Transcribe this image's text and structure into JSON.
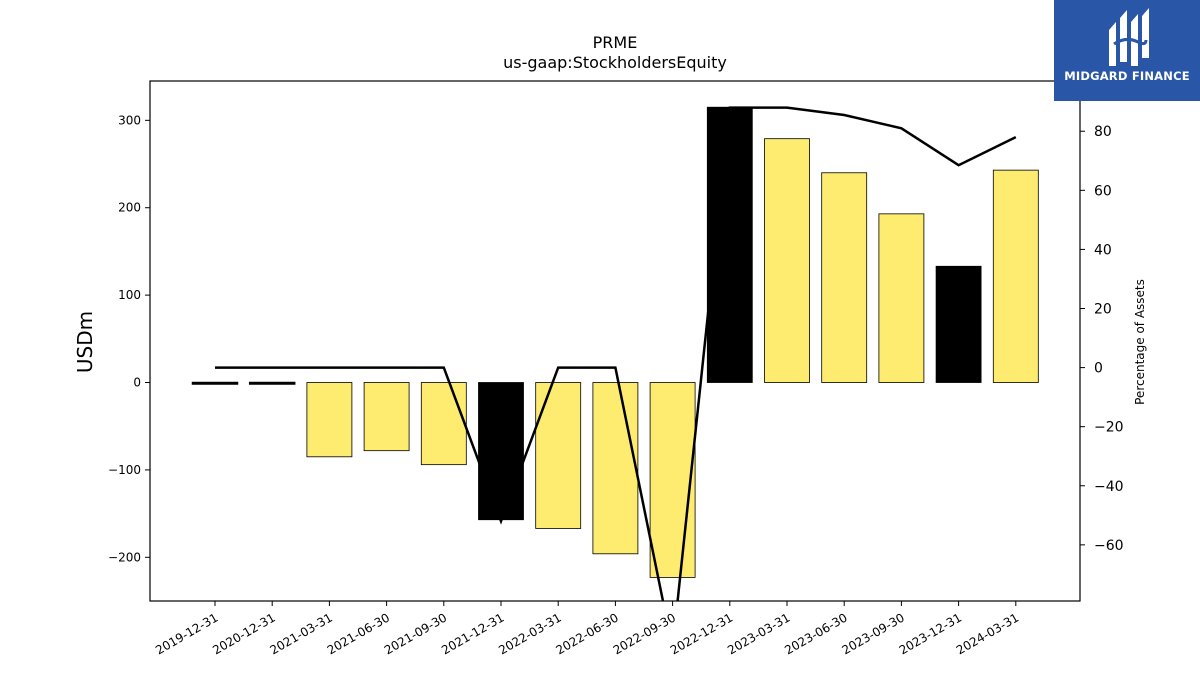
{
  "chart_data": {
    "type": "bar",
    "title": "PRME",
    "subtitle": "us-gaap:StockholdersEquity",
    "ylabel": "USDm",
    "y2label": "Percentage of Assets",
    "ylim": [
      -250,
      345
    ],
    "y2lim": [
      -79,
      97
    ],
    "yticks": [
      -200,
      -100,
      0,
      100,
      200,
      300
    ],
    "y2ticks": [
      -60,
      -40,
      -20,
      0,
      20,
      40,
      60,
      80
    ],
    "categories": [
      "2019-12-31",
      "2020-12-31",
      "2021-03-31",
      "2021-06-30",
      "2021-09-30",
      "2021-12-31",
      "2022-03-31",
      "2022-06-30",
      "2022-09-30",
      "2022-12-31",
      "2023-03-31",
      "2023-06-30",
      "2023-09-30",
      "2023-12-31",
      "2024-03-31"
    ],
    "series": [
      {
        "kind": "bar",
        "values": [
          -1.5,
          -0.5,
          -85,
          -78,
          -94,
          -157,
          -167,
          -196,
          -223,
          315,
          279,
          240,
          193,
          133,
          243
        ],
        "colors": [
          "#fdec6f",
          "#fdec6f",
          "#fdec6f",
          "#fdec6f",
          "#fdec6f",
          "#000000",
          "#fdec6f",
          "#fdec6f",
          "#fdec6f",
          "#000000",
          "#fdec6f",
          "#fdec6f",
          "#fdec6f",
          "#000000",
          "#fdec6f"
        ]
      },
      {
        "kind": "line",
        "values": [
          0,
          0,
          0,
          0,
          0,
          -52,
          0,
          0,
          -95,
          88,
          88,
          85.5,
          81,
          68.5,
          78
        ],
        "color": "#000000"
      }
    ],
    "grid": false,
    "legend": "none"
  },
  "logo": {
    "text": "MIDGARD FINANCE",
    "background": "#2a56a8"
  }
}
